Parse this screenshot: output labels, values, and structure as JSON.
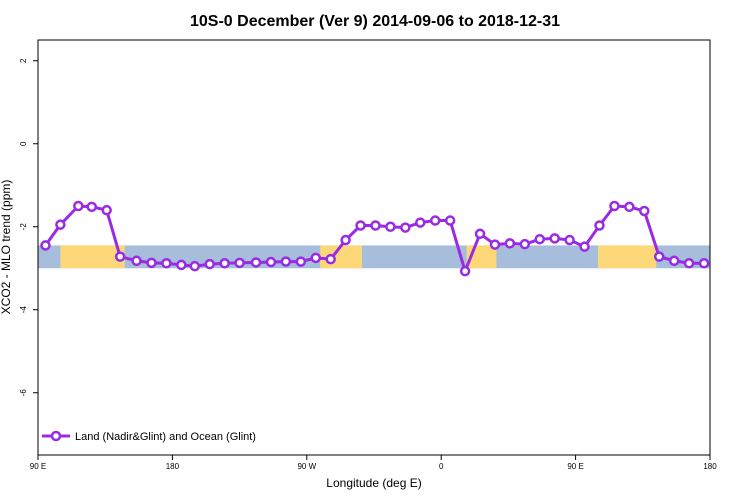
{
  "chart_data": {
    "type": "line",
    "title": "10S-0 December (Ver 9)   2014-09-06 to 2018-12-31",
    "xlabel": "Longitude (deg E)",
    "ylabel": "XCO2 - MLO trend (ppm)",
    "xlim": [
      90,
      540
    ],
    "ylim": [
      -7.5,
      2.5
    ],
    "x_ticks": [
      {
        "value": 90,
        "label": "90 E"
      },
      {
        "value": 180,
        "label": "180"
      },
      {
        "value": 270,
        "label": "90 W"
      },
      {
        "value": 360,
        "label": "0"
      },
      {
        "value": 450,
        "label": "90 E"
      },
      {
        "value": 540,
        "label": "180"
      }
    ],
    "y_ticks": [
      {
        "value": 2,
        "label": "2"
      },
      {
        "value": 0,
        "label": "0"
      },
      {
        "value": -2,
        "label": "-2"
      },
      {
        "value": -4,
        "label": "-4"
      },
      {
        "value": -6,
        "label": "-6"
      }
    ],
    "background_band": {
      "y_range": [
        -3.0,
        -2.45
      ],
      "ocean_color": "#a6bddb",
      "land_color": "#fdd878"
    },
    "land_segments_x": [
      [
        105,
        148
      ],
      [
        279,
        307
      ],
      [
        377,
        397
      ],
      [
        465,
        504
      ]
    ],
    "grid": false,
    "legend_position": "bottom-left",
    "series": [
      {
        "name": "Land (Nadir&Glint) and Ocean (Glint)",
        "color": "#9a2be2",
        "points": [
          [
            95,
            -2.45
          ],
          [
            105,
            -1.95
          ],
          [
            117,
            -1.5
          ],
          [
            126,
            -1.52
          ],
          [
            136,
            -1.6
          ],
          [
            145,
            -2.72
          ],
          [
            156,
            -2.82
          ],
          [
            166,
            -2.87
          ],
          [
            176,
            -2.88
          ],
          [
            186,
            -2.92
          ],
          [
            195,
            -2.95
          ],
          [
            205,
            -2.9
          ],
          [
            215,
            -2.88
          ],
          [
            225,
            -2.87
          ],
          [
            236,
            -2.86
          ],
          [
            246,
            -2.85
          ],
          [
            256,
            -2.84
          ],
          [
            266,
            -2.84
          ],
          [
            276,
            -2.75
          ],
          [
            286,
            -2.78
          ],
          [
            296,
            -2.32
          ],
          [
            306,
            -1.97
          ],
          [
            316,
            -1.97
          ],
          [
            326,
            -2.0
          ],
          [
            336,
            -2.02
          ],
          [
            346,
            -1.9
          ],
          [
            356,
            -1.85
          ],
          [
            366,
            -1.85
          ],
          [
            376,
            -3.07
          ],
          [
            386,
            -2.17
          ],
          [
            396,
            -2.43
          ],
          [
            406,
            -2.4
          ],
          [
            416,
            -2.42
          ],
          [
            426,
            -2.3
          ],
          [
            436,
            -2.28
          ],
          [
            446,
            -2.32
          ],
          [
            456,
            -2.48
          ],
          [
            466,
            -1.97
          ],
          [
            476,
            -1.5
          ],
          [
            486,
            -1.52
          ],
          [
            496,
            -1.62
          ],
          [
            506,
            -2.72
          ],
          [
            516,
            -2.82
          ],
          [
            526,
            -2.88
          ],
          [
            536,
            -2.88
          ]
        ]
      }
    ]
  }
}
